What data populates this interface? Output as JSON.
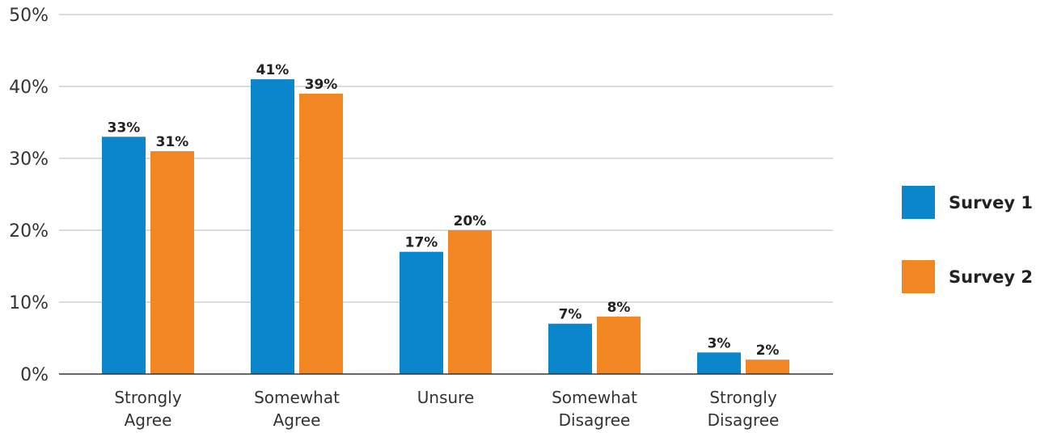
{
  "chart_data": {
    "type": "bar",
    "categories": [
      [
        "Strongly",
        "Agree"
      ],
      [
        "Somewhat",
        "Agree"
      ],
      [
        "Unsure"
      ],
      [
        "Somewhat",
        "Disagree"
      ],
      [
        "Strongly",
        "Disagree"
      ]
    ],
    "series": [
      {
        "name": "Survey 1",
        "color": "#0a86cc",
        "values": [
          33,
          41,
          17,
          7,
          3
        ],
        "labels": [
          "33%",
          "41%",
          "17%",
          "7%",
          "3%"
        ]
      },
      {
        "name": "Survey 2",
        "color": "#f28622",
        "values": [
          31,
          39,
          20,
          8,
          2
        ],
        "labels": [
          "31%",
          "39%",
          "20%",
          "8%",
          "2%"
        ]
      }
    ],
    "yticks": [
      0,
      10,
      20,
      30,
      40,
      50
    ],
    "ytick_labels": [
      "0%",
      "10%",
      "20%",
      "30%",
      "40%",
      "50%"
    ],
    "ylim": [
      0,
      50
    ],
    "grid": true,
    "legend": "right",
    "title": "",
    "xlabel": "",
    "ylabel": ""
  }
}
